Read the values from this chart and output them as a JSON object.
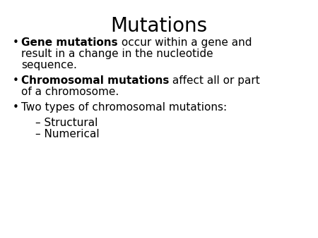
{
  "title": "Mutations",
  "title_fontsize": 20,
  "background_color": "#ffffff",
  "text_color": "#000000",
  "fontsize": 11,
  "lines": [
    {
      "type": "bullet",
      "bold": "Gene mutations",
      "normal": " occur within a gene and result in a change in the nucleotide sequence."
    },
    {
      "type": "bullet",
      "bold": "Chromosomal mutations",
      "normal": " affect all or part of a chromosome."
    },
    {
      "type": "bullet",
      "bold": "",
      "normal": "Two types of chromosomal mutations:"
    },
    {
      "type": "sub",
      "bold": "",
      "normal": "– Structural"
    },
    {
      "type": "sub",
      "bold": "",
      "normal": "– Numerical"
    }
  ]
}
